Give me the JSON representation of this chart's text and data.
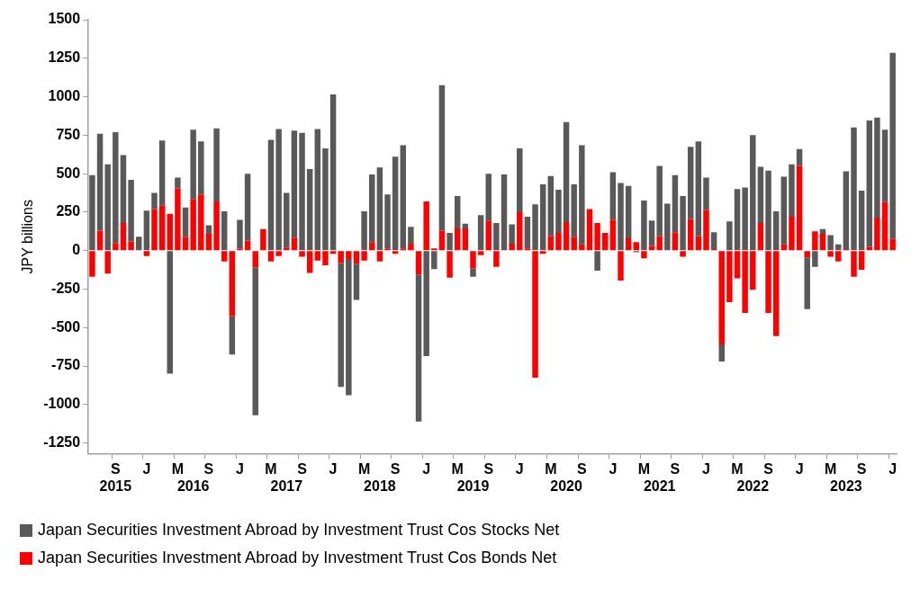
{
  "chart_data": {
    "type": "bar",
    "ylabel": "JPY billions",
    "stacked": true,
    "categories": [
      null,
      null,
      null,
      "S\n2015",
      null,
      null,
      null,
      "J",
      null,
      null,
      null,
      "M",
      null,
      "\n2016",
      null,
      "S",
      null,
      null,
      null,
      "J",
      null,
      null,
      null,
      "M",
      null,
      "\n2017",
      null,
      "S",
      null,
      null,
      null,
      "J",
      null,
      null,
      null,
      "M",
      null,
      "\n2018",
      null,
      "S",
      null,
      null,
      null,
      "J",
      null,
      null,
      null,
      "M",
      null,
      "\n2019",
      null,
      "S",
      null,
      null,
      null,
      "J",
      null,
      null,
      null,
      "M",
      null,
      "\n2020",
      null,
      "S",
      null,
      null,
      null,
      "J",
      null,
      null,
      null,
      "M",
      null,
      "\n2021",
      null,
      "S",
      null,
      null,
      null,
      "J",
      null,
      null,
      null,
      "M",
      null,
      "\n2022",
      null,
      "S",
      null,
      null,
      null,
      "J",
      null,
      null,
      null,
      "M",
      null,
      "\n2023",
      null,
      "S",
      null,
      null,
      null,
      "J"
    ],
    "series": [
      {
        "name": "Japan Securities Investment Abroad by Investment Trust Cos Bonds Net",
        "color": "#ff0000",
        "values": [
          -170,
          130,
          -150,
          50,
          180,
          60,
          0,
          -35,
          270,
          295,
          240,
          405,
          90,
          335,
          365,
          110,
          320,
          -70,
          -425,
          15,
          65,
          -110,
          140,
          -70,
          -35,
          20,
          85,
          -40,
          -145,
          -65,
          -95,
          -20,
          -80,
          -55,
          -85,
          -65,
          55,
          -70,
          15,
          -20,
          15,
          45,
          -155,
          320,
          15,
          130,
          -175,
          145,
          145,
          -115,
          -30,
          195,
          -105,
          null,
          45,
          250,
          15,
          -825,
          -20,
          95,
          115,
          185,
          90,
          40,
          270,
          180,
          115,
          200,
          -195,
          80,
          55,
          -50,
          30,
          95,
          0,
          120,
          -40,
          205,
          95,
          265,
          10,
          -610,
          -335,
          -180,
          -405,
          -255,
          180,
          -405,
          -555,
          40,
          220,
          550,
          -45,
          125,
          110,
          -40,
          -70,
          10,
          -170,
          -125,
          25,
          215,
          315,
          75
        ]
      },
      {
        "name": "Japan Securities Investment Abroad by Investment Trust Cos Stocks Net",
        "color": "#595959",
        "values": [
          490,
          630,
          560,
          720,
          440,
          400,
          90,
          260,
          105,
          420,
          -800,
          70,
          190,
          450,
          345,
          55,
          475,
          255,
          -250,
          185,
          435,
          -960,
          0,
          720,
          790,
          355,
          695,
          765,
          530,
          790,
          665,
          1015,
          -805,
          -885,
          -235,
          255,
          440,
          540,
          350,
          610,
          670,
          110,
          -955,
          -685,
          -120,
          945,
          115,
          210,
          30,
          -55,
          230,
          305,
          180,
          495,
          125,
          415,
          205,
          300,
          430,
          390,
          280,
          650,
          340,
          645,
          0,
          -130,
          0,
          310,
          440,
          340,
          -10,
          325,
          165,
          455,
          305,
          370,
          355,
          470,
          615,
          210,
          110,
          -110,
          190,
          400,
          410,
          750,
          365,
          520,
          255,
          440,
          340,
          110,
          -335,
          -105,
          30,
          100,
          40,
          505,
          800,
          390,
          820,
          650,
          470,
          1210
        ]
      }
    ],
    "ylim": [
      -1320,
      1500
    ],
    "yticks": [
      -1250,
      -1000,
      -750,
      -500,
      -250,
      0,
      250,
      500,
      750,
      1000,
      1250,
      1500
    ],
    "grid": false,
    "legend": "bottom"
  }
}
